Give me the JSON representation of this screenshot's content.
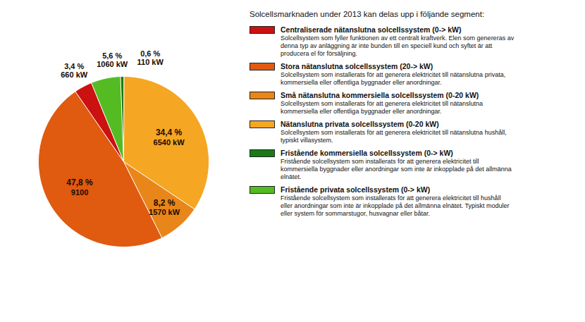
{
  "chart_data": {
    "type": "pie",
    "title": "Solcellsmarknaden under 2013 kan delas upp i följande segment:",
    "values": [
      34.4,
      8.2,
      47.8,
      3.4,
      5.6,
      0.6
    ],
    "value_labels": [
      "34,4 %",
      "8,2 %",
      "47,8 %",
      "3,4 %",
      "5,6 %",
      "0,6 %"
    ],
    "power_labels": [
      "6540 kW",
      "1570 kW",
      "9100",
      "660 kW",
      "1060 kW",
      "110 kW"
    ],
    "colors": [
      "#F5A623",
      "#E8861A",
      "#E05A10",
      "#CC1111",
      "#55BB22",
      "#1A7A1A"
    ],
    "legend_entries": [
      {
        "color": "#CC1111",
        "name": "Centraliserade nätanslutna solcellssystem (0-> kW)",
        "description": "Solcellsystem som fyller funktionen av ett centralt kraftverk. Elen som genereras av\ndenna typ av anläggning är inte bunden till en speciell kund och syftet är att\nproducera el för försäljning."
      },
      {
        "color": "#E05A10",
        "name": "Stora nätanslutna solcellssystem (20-> kW)",
        "description": "Solcellsystem som installerats för att generera elektricitet till nätanslutna privata,\nkommersiella eller offentliga byggnader eller anordningar."
      },
      {
        "color": "#E8861A",
        "name": "Små nätanslutna kommersiella solcellssystem (0-20 kW)",
        "description": "Solcellsystem som installerats för att generera elektricitet till nätanslutna\nkommersiella eller offentliga byggnader eller anordningar."
      },
      {
        "color": "#F5A623",
        "name": "Nätanslutna privata solcellssystem (0-20 kW)",
        "description": "Solcellsystem som installerats för att generera elektricitet till nätanslutna hushåll,\ntypiskt villasystem."
      },
      {
        "color": "#1A7A1A",
        "name": "Fristående kommersiella solcellssystem (0-> kW)",
        "description": "Fristående solcellsystem som installerats för att generera elektricitet till\nkommersiella byggnader eller anordningar som inte är inkopplade på det allmänna\nelnätet."
      },
      {
        "color": "#55BB22",
        "name": "Fristående privata solcellssystem (0-> kW)",
        "description": "Fristående solcellsystem som installerats för att generera elektricitet till hushåll\neller anordningar som inte är inkopplade på det allmänna elnätet. Typiskt moduler\neller system för sommarstugor, husvagnar eller båtar."
      }
    ]
  }
}
